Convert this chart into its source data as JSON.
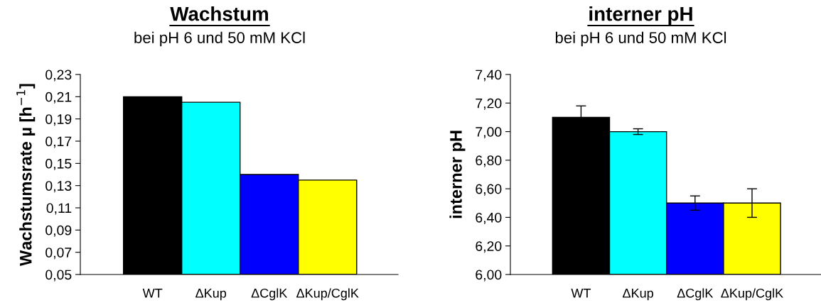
{
  "chart_data": [
    {
      "type": "bar",
      "title": "Wachstum",
      "subtitle": "bei pH 6 und 50 mM KCl",
      "ylabel": "Wachstumsrate µ [h$^{−1}$]",
      "categories": [
        "WT",
        "ΔKup",
        "ΔCglK",
        "ΔKup/CglK"
      ],
      "values": [
        0.21,
        0.205,
        0.14,
        0.135
      ],
      "colors": [
        "#000000",
        "#00ffff",
        "#0000ff",
        "#ffff00"
      ],
      "ylim": [
        0.05,
        0.23
      ],
      "yticks": [
        {
          "value": 0.05,
          "label": "0,05"
        },
        {
          "value": 0.07,
          "label": "0,07"
        },
        {
          "value": 0.09,
          "label": "0,09"
        },
        {
          "value": 0.11,
          "label": "0,11"
        },
        {
          "value": 0.13,
          "label": "0,13"
        },
        {
          "value": 0.15,
          "label": "0,15"
        },
        {
          "value": 0.17,
          "label": "0,17"
        },
        {
          "value": 0.19,
          "label": "0,19"
        },
        {
          "value": 0.21,
          "label": "0,21"
        },
        {
          "value": 0.23,
          "label": "0,23"
        }
      ],
      "grid": false,
      "legend": false
    },
    {
      "type": "bar",
      "title": "interner pH",
      "subtitle": "bei pH 6 und 50 mM KCl",
      "ylabel": "interner pH",
      "categories": [
        "WT",
        "ΔKup",
        "ΔCglK",
        "ΔKup/CglK"
      ],
      "values": [
        7.1,
        7.0,
        6.5,
        6.5
      ],
      "errors": [
        0.08,
        0.02,
        0.05,
        0.1
      ],
      "colors": [
        "#000000",
        "#00ffff",
        "#0000ff",
        "#ffff00"
      ],
      "ylim": [
        6.0,
        7.4
      ],
      "yticks": [
        {
          "value": 6.0,
          "label": "6,00"
        },
        {
          "value": 6.2,
          "label": "6,20"
        },
        {
          "value": 6.4,
          "label": "6,40"
        },
        {
          "value": 6.6,
          "label": "6,60"
        },
        {
          "value": 6.8,
          "label": "6,80"
        },
        {
          "value": 7.0,
          "label": "7,00"
        },
        {
          "value": 7.2,
          "label": "7,20"
        },
        {
          "value": 7.4,
          "label": "7,40"
        }
      ],
      "grid": false,
      "legend": false
    }
  ]
}
